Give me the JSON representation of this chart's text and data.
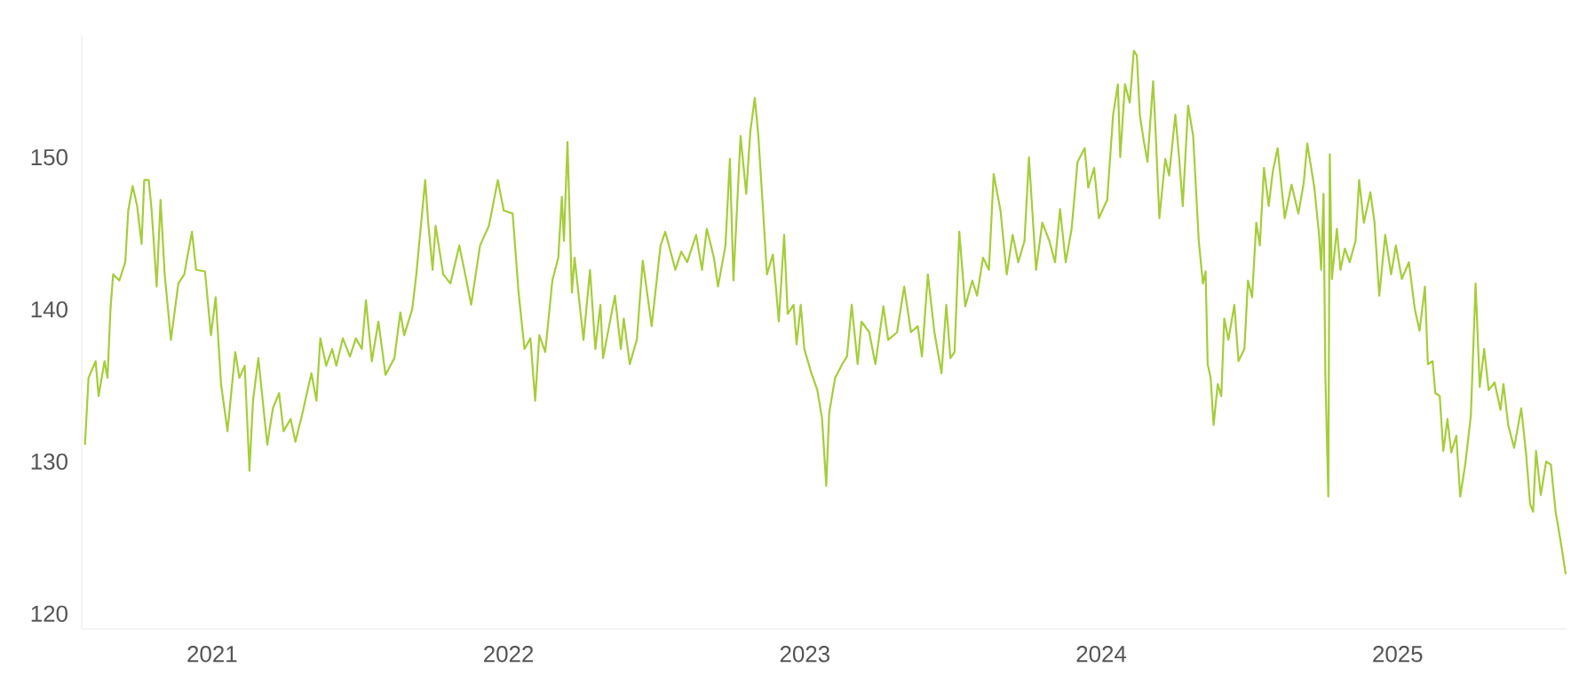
{
  "chart_data": {
    "type": "line",
    "color": "#a5cd39",
    "xlim": [
      2020.56,
      2025.57
    ],
    "ylim": [
      119,
      158
    ],
    "xticks": [
      2021,
      2022,
      2023,
      2024,
      2025
    ],
    "yticks": [
      120,
      130,
      140,
      150
    ],
    "x": [
      2020.571,
      2020.583,
      2020.607,
      2020.617,
      2020.637,
      2020.647,
      2020.657,
      2020.666,
      2020.687,
      2020.707,
      2020.717,
      2020.732,
      2020.747,
      2020.762,
      2020.771,
      2020.786,
      2020.796,
      2020.813,
      2020.826,
      2020.84,
      2020.861,
      2020.886,
      2020.906,
      2020.916,
      2020.932,
      2020.946,
      2020.976,
      2020.996,
      2021.012,
      2021.03,
      2021.052,
      2021.062,
      2021.078,
      2021.092,
      2021.11,
      2021.126,
      2021.138,
      2021.156,
      2021.186,
      2021.205,
      2021.226,
      2021.241,
      2021.265,
      2021.281,
      2021.305,
      2021.335,
      2021.352,
      2021.365,
      2021.385,
      2021.405,
      2021.419,
      2021.441,
      2021.465,
      2021.485,
      2021.505,
      2021.519,
      2021.539,
      2021.561,
      2021.585,
      2021.615,
      2021.635,
      2021.648,
      2021.675,
      2021.689,
      2021.719,
      2021.729,
      2021.744,
      2021.754,
      2021.78,
      2021.804,
      2021.834,
      2021.854,
      2021.874,
      2021.904,
      2021.934,
      2021.964,
      2021.984,
      2022.014,
      2022.034,
      2022.054,
      2022.074,
      2022.09,
      2022.104,
      2022.124,
      2022.148,
      2022.168,
      2022.18,
      2022.187,
      2022.199,
      2022.214,
      2022.223,
      2022.253,
      2022.275,
      2022.293,
      2022.31,
      2022.319,
      2022.359,
      2022.379,
      2022.389,
      2022.409,
      2022.433,
      2022.453,
      2022.483,
      2022.513,
      2022.529,
      2022.563,
      2022.583,
      2022.603,
      2022.633,
      2022.653,
      2022.669,
      2022.693,
      2022.707,
      2022.732,
      2022.747,
      2022.759,
      2022.783,
      2022.802,
      2022.816,
      2022.831,
      2022.843,
      2022.858,
      2022.872,
      2022.892,
      2022.902,
      2022.912,
      2022.93,
      2022.942,
      2022.962,
      2022.972,
      2022.986,
      2022.998,
      2023.022,
      2023.042,
      2023.058,
      2023.072,
      2023.082,
      2023.102,
      2023.126,
      2023.142,
      2023.158,
      2023.178,
      2023.191,
      2023.217,
      2023.238,
      2023.265,
      2023.281,
      2023.311,
      2023.335,
      2023.358,
      2023.381,
      2023.395,
      2023.415,
      2023.437,
      2023.461,
      2023.477,
      2023.491,
      2023.505,
      2023.521,
      2023.541,
      2023.565,
      2023.581,
      2023.601,
      2023.621,
      2023.637,
      2023.66,
      2023.681,
      2023.701,
      2023.72,
      2023.741,
      2023.756,
      2023.78,
      2023.801,
      2023.825,
      2023.844,
      2023.861,
      2023.88,
      2023.9,
      2023.92,
      2023.944,
      2023.956,
      2023.976,
      2023.992,
      2024.02,
      2024.04,
      2024.056,
      2024.064,
      2024.08,
      2024.096,
      2024.11,
      2024.12,
      2024.13,
      2024.144,
      2024.156,
      2024.175,
      2024.184,
      2024.196,
      2024.216,
      2024.229,
      2024.25,
      2024.263,
      2024.275,
      2024.293,
      2024.31,
      2024.329,
      2024.343,
      2024.352,
      2024.359,
      2024.369,
      2024.379,
      2024.393,
      2024.405,
      2024.415,
      2024.429,
      2024.449,
      2024.463,
      2024.483,
      2024.495,
      2024.509,
      2024.523,
      2024.535,
      2024.549,
      2024.565,
      2024.579,
      2024.595,
      2024.619,
      2024.642,
      2024.665,
      2024.683,
      2024.695,
      2024.719,
      2024.735,
      2024.742,
      2024.75,
      2024.756,
      2024.766,
      2024.771,
      2024.778,
      2024.795,
      2024.807,
      2024.822,
      2024.838,
      2024.858,
      2024.87,
      2024.886,
      2024.908,
      2024.922,
      2024.938,
      2024.958,
      2024.978,
      2024.994,
      2025.014,
      2025.038,
      2025.058,
      2025.074,
      2025.092,
      2025.102,
      2025.118,
      2025.127,
      2025.142,
      2025.154,
      2025.168,
      2025.181,
      2025.198,
      2025.211,
      2025.228,
      2025.247,
      2025.263,
      2025.277,
      2025.292,
      2025.307,
      2025.327,
      2025.347,
      2025.357,
      2025.373,
      2025.393,
      2025.417,
      2025.433,
      2025.447,
      2025.457,
      2025.467,
      2025.483,
      2025.501,
      2025.517,
      2025.533,
      2025.553,
      2025.567
    ],
    "values": [
      131.1,
      135.5,
      136.6,
      134.3,
      136.6,
      135.5,
      140.0,
      142.3,
      141.9,
      143.1,
      146.5,
      148.1,
      146.8,
      144.3,
      148.5,
      148.5,
      146.5,
      141.5,
      147.2,
      142.3,
      138.0,
      141.7,
      142.3,
      143.4,
      145.1,
      142.6,
      142.5,
      138.3,
      140.8,
      135.1,
      132.0,
      134.0,
      137.2,
      135.5,
      136.3,
      129.4,
      134.0,
      136.8,
      131.1,
      133.5,
      134.5,
      132.0,
      132.8,
      131.3,
      133.2,
      135.8,
      134.0,
      138.1,
      136.3,
      137.4,
      136.3,
      138.1,
      136.9,
      138.1,
      137.4,
      140.6,
      136.6,
      139.2,
      135.7,
      136.8,
      139.8,
      138.3,
      140.0,
      142.3,
      148.5,
      145.7,
      142.6,
      145.5,
      142.3,
      141.7,
      144.2,
      142.3,
      140.3,
      144.2,
      145.5,
      148.5,
      146.5,
      146.3,
      141.1,
      137.4,
      138.1,
      134.0,
      138.3,
      137.2,
      141.9,
      143.4,
      147.4,
      144.5,
      151.0,
      141.1,
      143.4,
      138.0,
      142.6,
      137.4,
      140.3,
      136.8,
      140.9,
      137.4,
      139.4,
      136.4,
      138.0,
      143.2,
      138.9,
      144.2,
      145.1,
      142.6,
      143.8,
      143.1,
      144.9,
      142.6,
      145.3,
      143.4,
      141.5,
      144.2,
      149.9,
      141.9,
      151.4,
      147.6,
      151.7,
      153.9,
      151.4,
      146.8,
      142.3,
      143.6,
      141.5,
      139.2,
      144.9,
      139.7,
      140.3,
      137.7,
      140.3,
      137.4,
      135.8,
      134.7,
      132.8,
      128.4,
      133.2,
      135.5,
      136.4,
      136.9,
      140.3,
      136.4,
      139.2,
      138.5,
      136.4,
      140.2,
      138.0,
      138.5,
      141.5,
      138.5,
      138.9,
      136.9,
      142.3,
      138.5,
      135.8,
      140.3,
      136.8,
      137.2,
      145.1,
      140.2,
      141.9,
      140.9,
      143.4,
      142.6,
      148.9,
      146.5,
      142.3,
      144.9,
      143.1,
      144.5,
      150.0,
      142.6,
      145.7,
      144.5,
      143.1,
      146.6,
      143.1,
      145.3,
      149.7,
      150.6,
      148.0,
      149.3,
      146.0,
      147.2,
      152.8,
      154.8,
      150.0,
      154.8,
      153.6,
      157.0,
      156.7,
      152.8,
      151.0,
      149.7,
      155.0,
      151.4,
      146.0,
      149.9,
      148.8,
      152.8,
      149.9,
      146.8,
      153.4,
      151.4,
      144.5,
      141.7,
      142.5,
      136.4,
      135.5,
      132.4,
      135.1,
      134.3,
      139.4,
      138.0,
      140.3,
      136.6,
      137.4,
      141.9,
      140.8,
      145.7,
      144.2,
      149.3,
      146.8,
      149.1,
      150.6,
      146.0,
      148.2,
      146.3,
      148.3,
      150.9,
      148.0,
      144.9,
      142.6,
      147.6,
      135.8,
      127.7,
      150.2,
      142.0,
      145.3,
      142.6,
      144.0,
      143.1,
      144.5,
      148.5,
      145.7,
      147.7,
      145.7,
      140.9,
      144.9,
      142.3,
      144.2,
      142.0,
      143.1,
      140.0,
      138.6,
      141.5,
      136.4,
      136.6,
      134.5,
      134.3,
      130.7,
      132.8,
      130.6,
      131.7,
      127.7,
      129.8,
      133.0,
      141.7,
      134.9,
      137.4,
      134.7,
      135.2,
      133.4,
      135.1,
      132.4,
      130.9,
      133.5,
      130.6,
      127.2,
      126.7,
      130.7,
      127.8,
      130.0,
      129.8,
      126.7,
      124.4,
      122.6
    ]
  }
}
